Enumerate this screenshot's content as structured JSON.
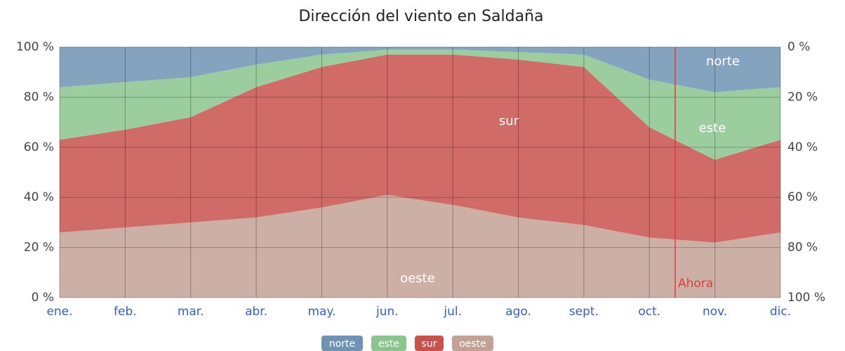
{
  "chart_data": {
    "type": "stacked_area",
    "title": "Dirección del viento en Saldaña",
    "categories": [
      "ene.",
      "feb.",
      "mar.",
      "abr.",
      "may.",
      "jun.",
      "jul.",
      "ago.",
      "sept.",
      "oct.",
      "nov.",
      "dic."
    ],
    "series": [
      {
        "name": "oeste",
        "color": "#c3a295",
        "values": [
          26,
          28,
          30,
          32,
          36,
          41,
          37,
          32,
          29,
          24,
          22,
          26
        ]
      },
      {
        "name": "sur",
        "color": "#c9514c",
        "values": [
          37,
          39,
          42,
          52,
          56,
          56,
          60,
          63,
          63,
          44,
          33,
          37
        ]
      },
      {
        "name": "este",
        "color": "#8bc48d",
        "values": [
          21,
          19,
          16,
          9,
          5,
          2,
          2,
          3,
          5,
          19,
          27,
          21
        ]
      },
      {
        "name": "norte",
        "color": "#6f93b3",
        "values": [
          16,
          14,
          12,
          7,
          3,
          1,
          1,
          2,
          3,
          13,
          18,
          16
        ]
      }
    ],
    "ylim": [
      0,
      100
    ],
    "yticks": [
      {
        "value": 0,
        "label": "0 %"
      },
      {
        "value": 20,
        "label": "20 %"
      },
      {
        "value": 40,
        "label": "40 %"
      },
      {
        "value": 60,
        "label": "60 %"
      },
      {
        "value": 80,
        "label": "80 %"
      },
      {
        "value": 100,
        "label": "100 %"
      }
    ],
    "y2lim": [
      100,
      0
    ],
    "y2ticks": [
      {
        "value": 0,
        "label": "0 %"
      },
      {
        "value": 20,
        "label": "20 %"
      },
      {
        "value": 40,
        "label": "40 %"
      },
      {
        "value": 60,
        "label": "60 %"
      },
      {
        "value": 80,
        "label": "80 %"
      },
      {
        "value": 100,
        "label": "100 %"
      }
    ],
    "now_marker": {
      "label": "Ahora",
      "color": "#e03c3c"
    },
    "grid": true,
    "legend": "bottom"
  }
}
